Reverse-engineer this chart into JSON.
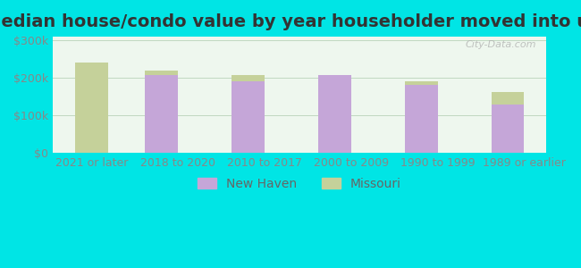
{
  "title": "Median house/condo value by year householder moved into unit",
  "categories": [
    "2021 or later",
    "2018 to 2020",
    "2010 to 2017",
    "2000 to 2009",
    "1990 to 1999",
    "1989 or earlier"
  ],
  "new_haven": [
    null,
    208000,
    192000,
    208000,
    182000,
    128000
  ],
  "missouri": [
    240000,
    220000,
    208000,
    200000,
    190000,
    162000
  ],
  "new_haven_color": "#c5a6d8",
  "missouri_color": "#c5d19a",
  "background_outer": "#00e5e5",
  "background_inner": "#eef7ee",
  "background_gradient_top": "#dff0e8",
  "yticks": [
    0,
    100000,
    200000,
    300000
  ],
  "ylabels": [
    "$0",
    "$100k",
    "$200k",
    "$300k"
  ],
  "ylim": [
    0,
    310000
  ],
  "bar_width": 0.38,
  "legend_new_haven": "New Haven",
  "legend_missouri": "Missouri",
  "watermark": "City-Data.com",
  "title_fontsize": 14,
  "axis_fontsize": 9,
  "legend_fontsize": 10
}
